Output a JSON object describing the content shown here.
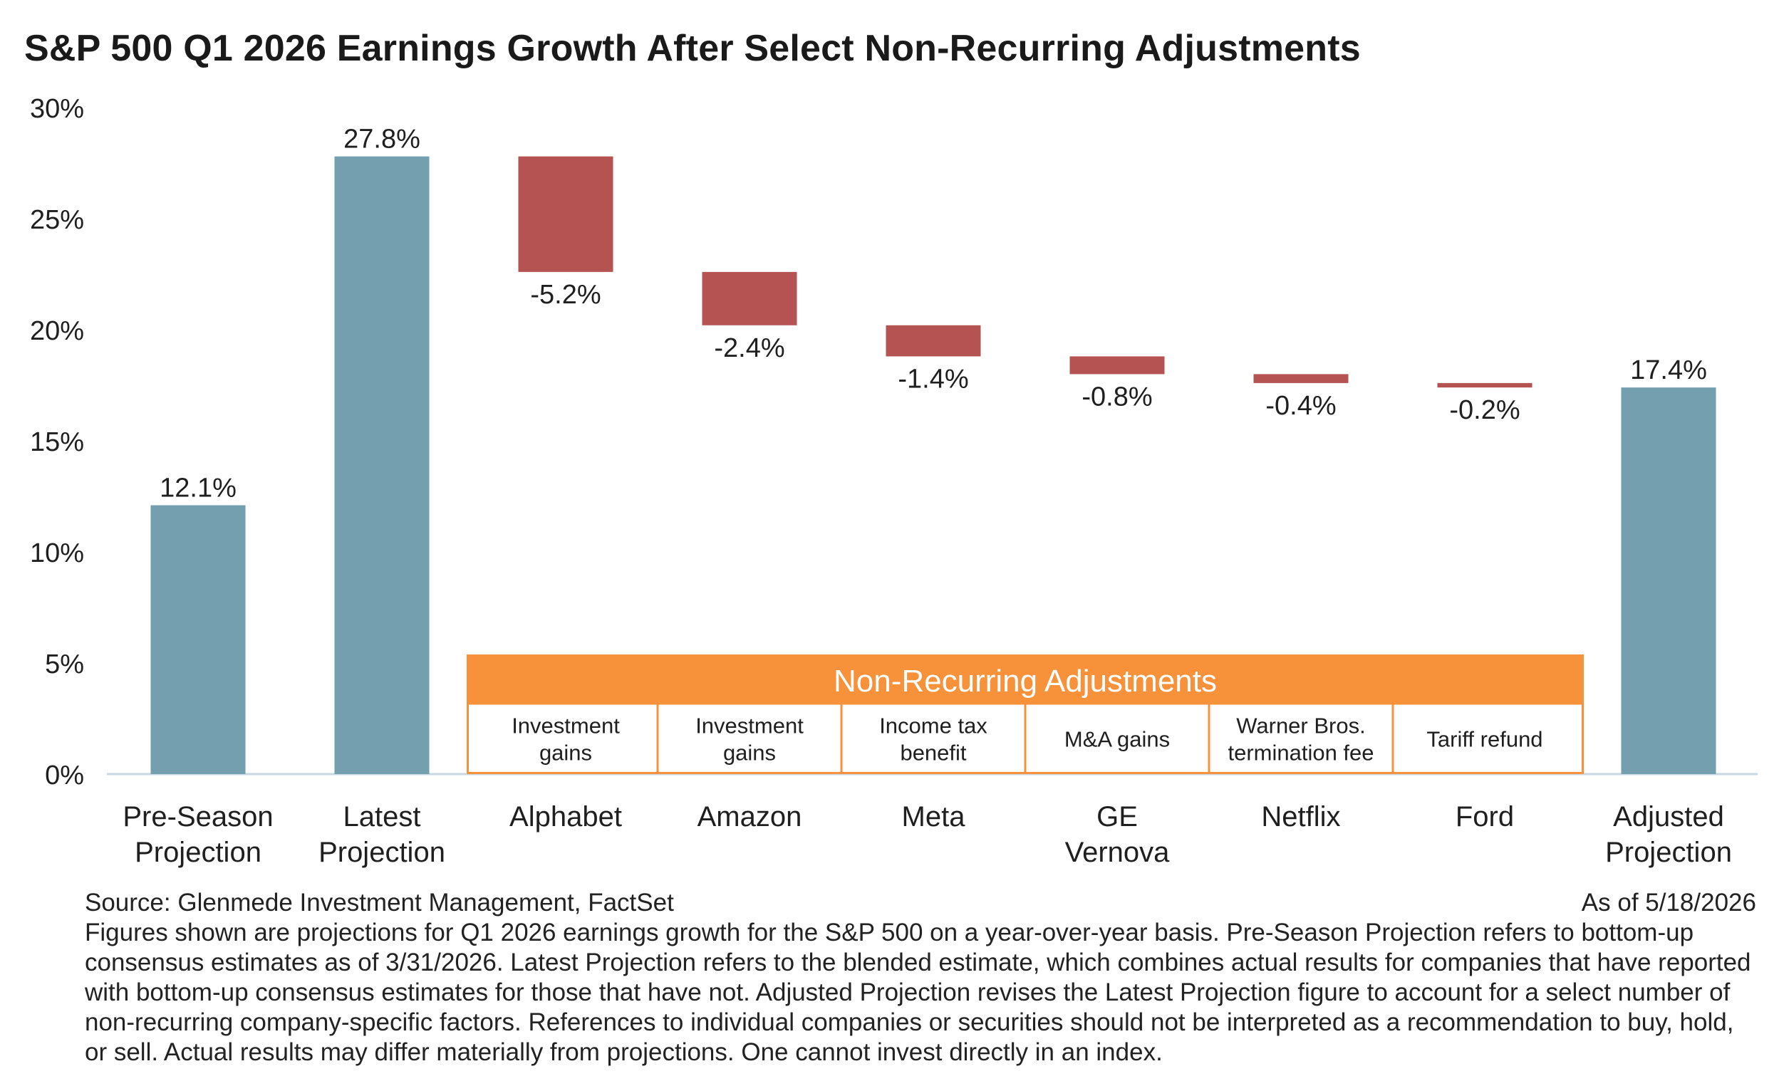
{
  "chart_data": {
    "type": "waterfall",
    "title": "S&P 500 Q1 2026 Earnings Growth After Select Non-Recurring Adjustments",
    "ylim": [
      0,
      30
    ],
    "yticks": [
      0,
      5,
      10,
      15,
      20,
      25,
      30
    ],
    "ytick_labels": [
      "0%",
      "5%",
      "10%",
      "15%",
      "20%",
      "25%",
      "30%"
    ],
    "grid": false,
    "categories": [
      {
        "label": [
          "Pre-Season",
          "Projection"
        ],
        "kind": "total",
        "value": 12.1,
        "data_label": "12.1%"
      },
      {
        "label": [
          "Latest",
          "Projection"
        ],
        "kind": "total",
        "value": 27.8,
        "data_label": "27.8%"
      },
      {
        "label": [
          "Alphabet"
        ],
        "kind": "delta",
        "value": -5.2,
        "data_label": "-5.2%",
        "adjustment": [
          "Investment",
          "gains"
        ]
      },
      {
        "label": [
          "Amazon"
        ],
        "kind": "delta",
        "value": -2.4,
        "data_label": "-2.4%",
        "adjustment": [
          "Investment",
          "gains"
        ]
      },
      {
        "label": [
          "Meta"
        ],
        "kind": "delta",
        "value": -1.4,
        "data_label": "-1.4%",
        "adjustment": [
          "Income tax",
          "benefit"
        ]
      },
      {
        "label": [
          "GE",
          "Vernova"
        ],
        "kind": "delta",
        "value": -0.8,
        "data_label": "-0.8%",
        "adjustment": [
          "M&A gains"
        ]
      },
      {
        "label": [
          "Netflix"
        ],
        "kind": "delta",
        "value": -0.4,
        "data_label": "-0.4%",
        "adjustment": [
          "Warner Bros.",
          "termination fee"
        ]
      },
      {
        "label": [
          "Ford"
        ],
        "kind": "delta",
        "value": -0.2,
        "data_label": "-0.2%",
        "adjustment": [
          "Tariff refund"
        ]
      },
      {
        "label": [
          "Adjusted",
          "Projection"
        ],
        "kind": "total",
        "value": 17.4,
        "data_label": "17.4%"
      }
    ],
    "adjustments_header": "Non-Recurring Adjustments",
    "colors": {
      "total": "#739fae",
      "delta": "#b55353",
      "box": "#f7923a",
      "axis": "#c9d7e2"
    }
  },
  "footer": {
    "source": "Source: Glenmede Investment Management, FactSet",
    "as_of": "As of 5/18/2026",
    "note": "Figures shown are projections for Q1 2026 earnings growth for the S&P 500 on a year-over-year basis. Pre-Season Projection refers to bottom-up consensus estimates as of 3/31/2026. Latest Projection refers to the blended estimate, which combines actual results for companies that have reported with bottom-up consensus estimates for those that have not. Adjusted Projection revises the Latest Projection figure to account for a select number of non-recurring company-specific factors. References to individual companies or securities should not be interpreted as a recommendation to buy, hold, or sell. Actual results may differ materially from projections. One cannot invest directly in an index."
  }
}
